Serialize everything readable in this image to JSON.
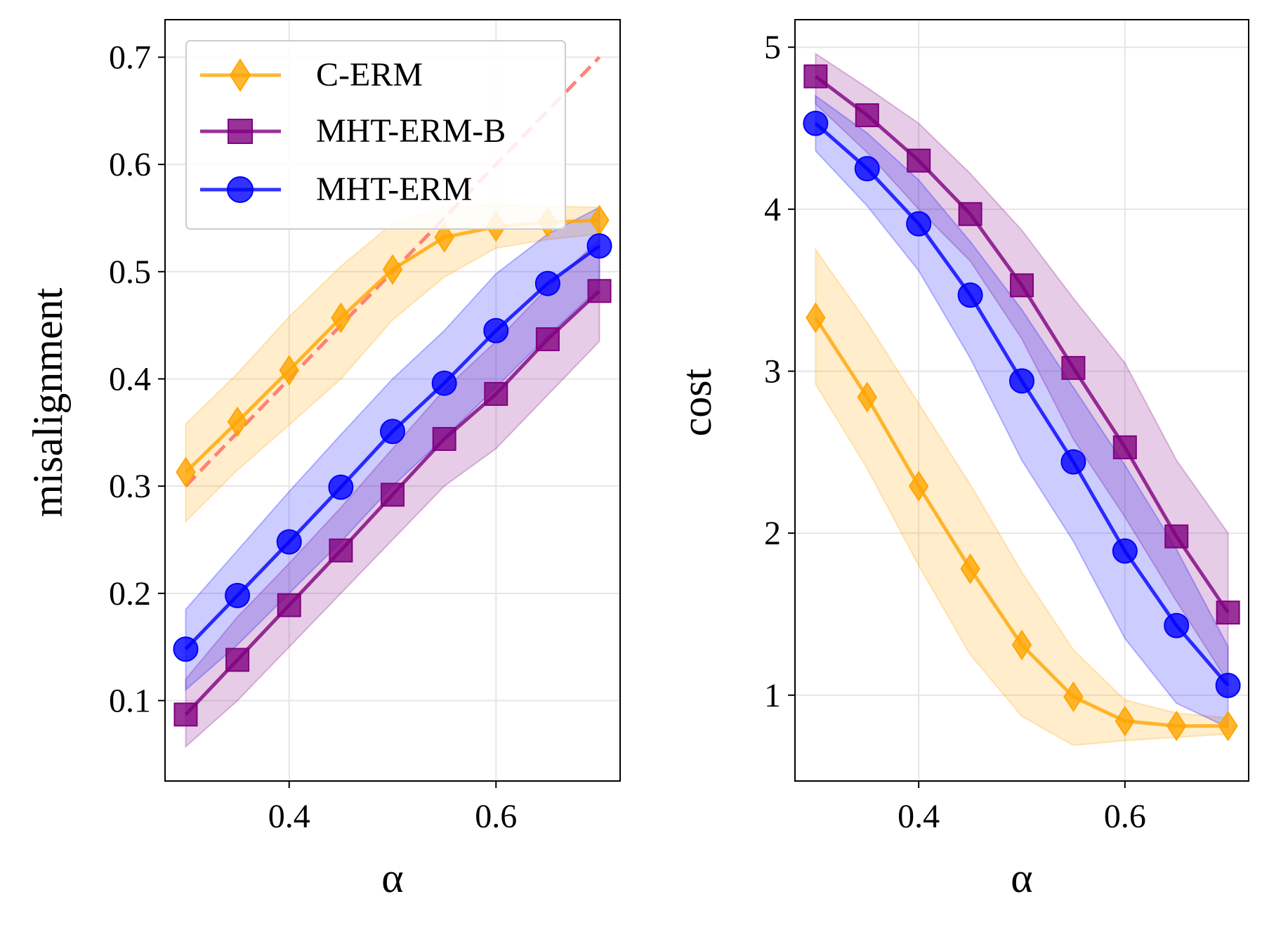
{
  "colors": {
    "c_erm": "#FFA500",
    "mht_erm_b": "#800080",
    "mht_erm": "#0000FF",
    "ref_line": "#FF6F61",
    "grid": "#e6e6e6"
  },
  "legend": {
    "entries": [
      {
        "key": "c_erm",
        "label": "C-ERM",
        "marker": "diamond"
      },
      {
        "key": "mht_erm_b",
        "label": "MHT-ERM-B",
        "marker": "square"
      },
      {
        "key": "mht_erm",
        "label": "MHT-ERM",
        "marker": "circle"
      }
    ],
    "placement": "upper-left of left panel"
  },
  "chart_data": [
    {
      "type": "line",
      "panel": "left",
      "xlabel": "α",
      "ylabel": "misalignment",
      "xlim": [
        0.28,
        0.72
      ],
      "ylim": [
        0.025,
        0.735
      ],
      "xticks": [
        0.4,
        0.6
      ],
      "xtick_labels": [
        "0.4",
        "0.6"
      ],
      "yticks": [
        0.1,
        0.2,
        0.3,
        0.4,
        0.5,
        0.6,
        0.7
      ],
      "ytick_labels": [
        "0.1",
        "0.2",
        "0.3",
        "0.4",
        "0.5",
        "0.6",
        "0.7"
      ],
      "grid": true,
      "x": [
        0.3,
        0.35,
        0.4,
        0.45,
        0.5,
        0.55,
        0.6,
        0.65,
        0.7
      ],
      "reference_line": {
        "name": "y = α",
        "x": [
          0.3,
          0.7
        ],
        "y": [
          0.3,
          0.7
        ],
        "style": "dashed"
      },
      "series": [
        {
          "name": "C-ERM",
          "key": "c_erm",
          "marker": "diamond",
          "values": [
            0.313,
            0.36,
            0.408,
            0.457,
            0.502,
            0.532,
            0.542,
            0.546,
            0.548
          ],
          "lower": [
            0.267,
            0.315,
            0.357,
            0.4,
            0.455,
            0.495,
            0.522,
            0.53,
            0.535
          ],
          "upper": [
            0.358,
            0.405,
            0.458,
            0.505,
            0.545,
            0.56,
            0.563,
            0.561,
            0.56
          ]
        },
        {
          "name": "MHT-ERM-B",
          "key": "mht_erm_b",
          "marker": "square",
          "values": [
            0.087,
            0.138,
            0.189,
            0.24,
            0.292,
            0.344,
            0.386,
            0.437,
            0.482
          ],
          "lower": [
            0.057,
            0.1,
            0.15,
            0.2,
            0.25,
            0.3,
            0.335,
            0.385,
            0.435
          ],
          "upper": [
            0.12,
            0.178,
            0.228,
            0.28,
            0.335,
            0.39,
            0.435,
            0.485,
            0.53
          ]
        },
        {
          "name": "MHT-ERM",
          "key": "mht_erm",
          "marker": "circle",
          "values": [
            0.148,
            0.198,
            0.248,
            0.299,
            0.351,
            0.396,
            0.445,
            0.489,
            0.524
          ],
          "lower": [
            0.11,
            0.152,
            0.2,
            0.248,
            0.3,
            0.345,
            0.392,
            0.44,
            0.485
          ],
          "upper": [
            0.185,
            0.24,
            0.295,
            0.348,
            0.4,
            0.445,
            0.498,
            0.535,
            0.56
          ]
        }
      ]
    },
    {
      "type": "line",
      "panel": "right",
      "xlabel": "α",
      "ylabel": "cost",
      "xlim": [
        0.28,
        0.72
      ],
      "ylim": [
        0.47,
        5.17
      ],
      "xticks": [
        0.4,
        0.6
      ],
      "xtick_labels": [
        "0.4",
        "0.6"
      ],
      "yticks": [
        1,
        2,
        3,
        4,
        5
      ],
      "ytick_labels": [
        "1",
        "2",
        "3",
        "4",
        "5"
      ],
      "grid": true,
      "x": [
        0.3,
        0.35,
        0.4,
        0.45,
        0.5,
        0.55,
        0.6,
        0.65,
        0.7
      ],
      "series": [
        {
          "name": "C-ERM",
          "key": "c_erm",
          "marker": "diamond",
          "values": [
            3.33,
            2.84,
            2.29,
            1.78,
            1.31,
            0.99,
            0.84,
            0.81,
            0.81
          ],
          "lower": [
            2.92,
            2.4,
            1.8,
            1.25,
            0.87,
            0.69,
            0.72,
            0.74,
            0.76
          ],
          "upper": [
            3.75,
            3.3,
            2.8,
            2.3,
            1.76,
            1.28,
            0.97,
            0.89,
            0.86
          ]
        },
        {
          "name": "MHT-ERM-B",
          "key": "mht_erm_b",
          "marker": "square",
          "values": [
            4.82,
            4.58,
            4.3,
            3.97,
            3.53,
            3.02,
            2.53,
            1.98,
            1.51
          ],
          "lower": [
            4.65,
            4.35,
            4.0,
            3.68,
            3.2,
            2.58,
            2.1,
            1.58,
            1.08
          ],
          "upper": [
            4.96,
            4.75,
            4.53,
            4.22,
            3.87,
            3.45,
            3.05,
            2.45,
            2.0
          ]
        },
        {
          "name": "MHT-ERM",
          "key": "mht_erm",
          "marker": "circle",
          "values": [
            4.53,
            4.25,
            3.91,
            3.47,
            2.94,
            2.44,
            1.89,
            1.43,
            1.06
          ],
          "lower": [
            4.36,
            4.02,
            3.62,
            3.08,
            2.45,
            1.95,
            1.35,
            0.95,
            0.8
          ],
          "upper": [
            4.7,
            4.47,
            4.18,
            3.8,
            3.38,
            2.9,
            2.42,
            1.9,
            1.3
          ]
        }
      ]
    }
  ]
}
